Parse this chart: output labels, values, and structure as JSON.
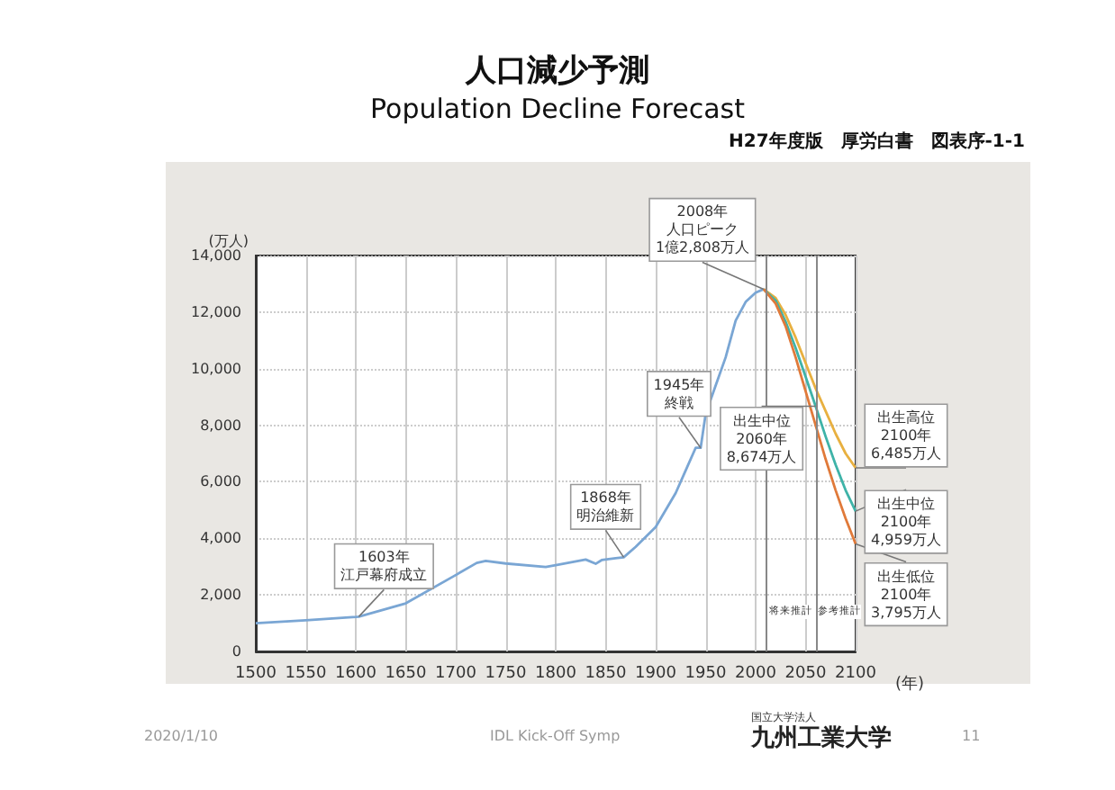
{
  "chart_data": {
    "type": "line",
    "title": "人口減少予測",
    "subtitle": "Population Decline Forecast",
    "ylabel": "(万人)",
    "xlabel": "(年)",
    "xlim": [
      1500,
      2100
    ],
    "xticks": [
      1500,
      1550,
      1600,
      1650,
      1700,
      1750,
      1800,
      1850,
      1900,
      1950,
      2000,
      2050,
      2100
    ],
    "ylim": [
      0,
      14000
    ],
    "yticks": [
      {
        "value": 0,
        "label": "0"
      },
      {
        "value": 2000,
        "label": "2,000"
      },
      {
        "value": 4000,
        "label": "4,000"
      },
      {
        "value": 6000,
        "label": "6,000"
      },
      {
        "value": 8000,
        "label": "8,000"
      },
      {
        "value": 10000,
        "label": "10,000"
      },
      {
        "value": 12000,
        "label": "12,000"
      },
      {
        "value": 14000,
        "label": "14,000"
      }
    ],
    "grid": true,
    "marker": "none",
    "line_style": "solid",
    "series": [
      {
        "color": "#7aa6d4",
        "x": [
          1500,
          1550,
          1600,
          1603,
          1650,
          1700,
          1721,
          1730,
          1750,
          1790,
          1800,
          1830,
          1840,
          1846,
          1860,
          1868,
          1880,
          1900,
          1920,
          1930,
          1940,
          1945,
          1950,
          1960,
          1970,
          1980,
          1990,
          2000,
          2008
        ],
        "values": [
          1000,
          1100,
          1220,
          1230,
          1700,
          2700,
          3130,
          3200,
          3110,
          2990,
          3050,
          3250,
          3100,
          3230,
          3300,
          3330,
          3700,
          4400,
          5600,
          6400,
          7200,
          7200,
          8400,
          9400,
          10400,
          11700,
          12360,
          12690,
          12810
        ]
      },
      {
        "color": "#e8b040",
        "x": [
          2008,
          2020,
          2030,
          2040,
          2050,
          2060,
          2070,
          2080,
          2090,
          2100
        ],
        "values": [
          12810,
          12500,
          11900,
          11100,
          10200,
          9300,
          8500,
          7700,
          7000,
          6490
        ]
      },
      {
        "color": "#3fb3a8",
        "x": [
          2008,
          2020,
          2030,
          2040,
          2050,
          2060,
          2070,
          2080,
          2090,
          2100
        ],
        "values": [
          12810,
          12410,
          11660,
          10730,
          9710,
          8670,
          7600,
          6600,
          5700,
          4960
        ]
      },
      {
        "color": "#e07a3a",
        "x": [
          2008,
          2020,
          2030,
          2040,
          2050,
          2060,
          2070,
          2080,
          2090,
          2100
        ],
        "values": [
          12810,
          12300,
          11500,
          10400,
          9200,
          8000,
          6800,
          5700,
          4700,
          3800
        ]
      }
    ],
    "ref_lines": [
      {
        "axis": "x",
        "value": 2010,
        "color": "#888888"
      },
      {
        "axis": "x",
        "value": 2060,
        "color": "#888888"
      }
    ],
    "annotations": [
      "H27年度版　厚労白書　図表序-1-1",
      "2020/1/10",
      "IDL Kick-Off Symp",
      "国立大学法人",
      "九州工業大学",
      "11",
      "将来推計",
      "参考推計",
      {
        "text": "1603年江戸幕府成立",
        "x": 1603,
        "y": 1230
      },
      {
        "text": "1868年明治維新",
        "x": 1868,
        "y": 3330
      },
      {
        "text": "1945年終戦",
        "x": 1945,
        "y": 7200
      },
      {
        "text": "2008年人口ピーク1億2,808万人",
        "x": 2008,
        "y": 12810
      },
      {
        "text": "出生中位2060年8,674万人",
        "x": 2060,
        "y": 8670
      },
      {
        "text": "出生高位2100年6,485万人",
        "x": 2100,
        "y": 6490
      },
      {
        "text": "出生中位2100年4,959万人",
        "x": 2100,
        "y": 4960
      },
      {
        "text": "出生低位2100年3,795万人",
        "x": 2100,
        "y": 3800
      }
    ]
  }
}
